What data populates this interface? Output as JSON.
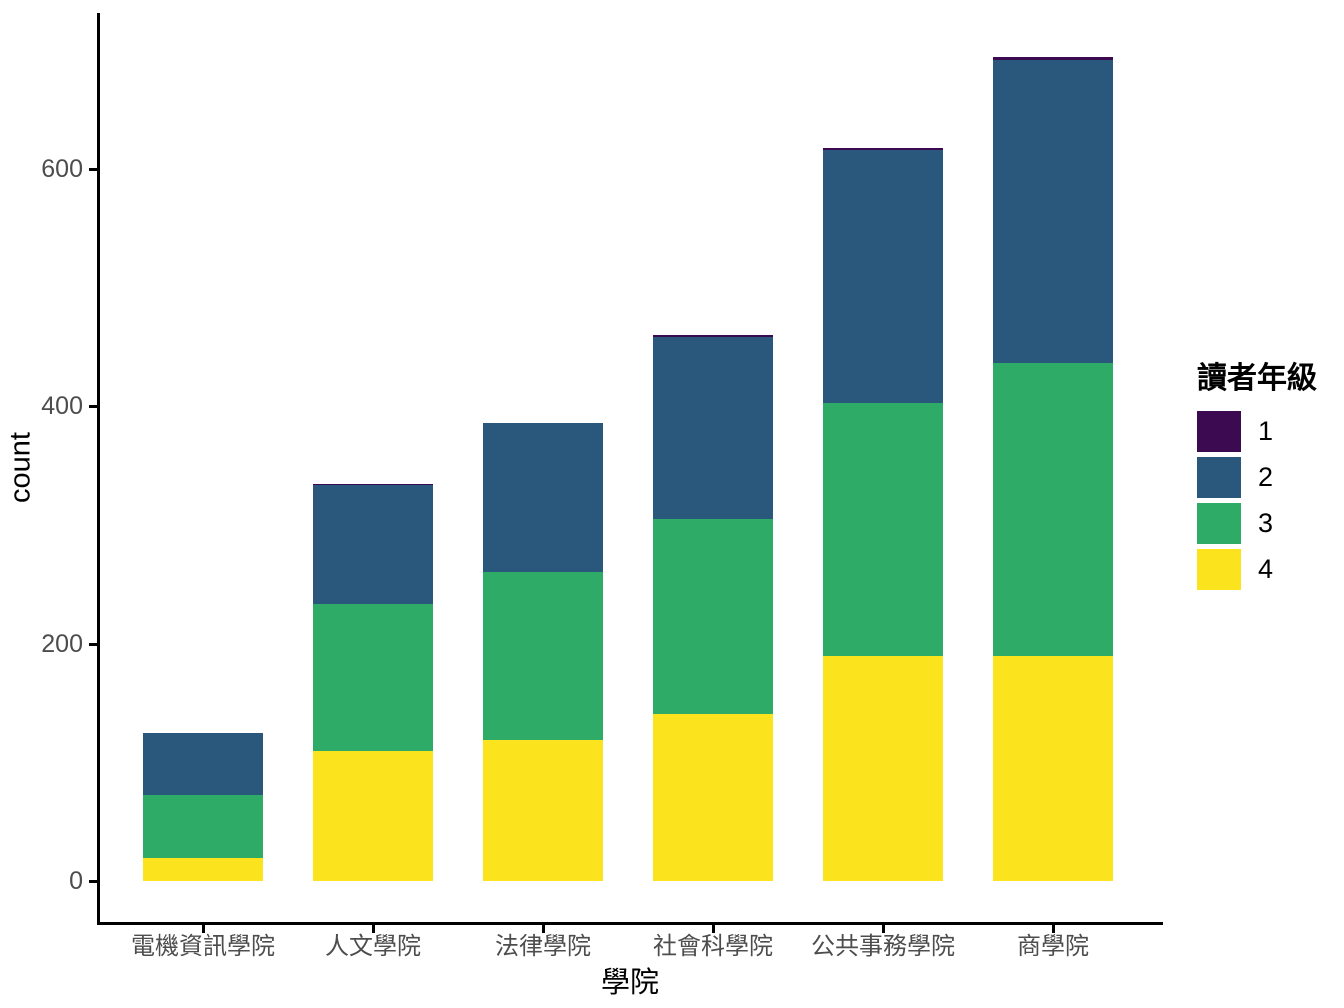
{
  "chart_data": {
    "type": "bar",
    "stacked": true,
    "title": "",
    "xlabel": "學院",
    "ylabel": "count",
    "categories": [
      "電機資訊學院",
      "人文學院",
      "法律學院",
      "社會科學院",
      "公共事務學院",
      "商學院"
    ],
    "series": [
      {
        "name": "1",
        "color": "#3B0A50",
        "values": [
          0,
          1,
          0,
          1,
          2,
          3
        ]
      },
      {
        "name": "2",
        "color": "#2A577C",
        "values": [
          52,
          100,
          125,
          154,
          213,
          255
        ]
      },
      {
        "name": "3",
        "color": "#2FAB68",
        "values": [
          53,
          124,
          142,
          164,
          213,
          247
        ]
      },
      {
        "name": "4",
        "color": "#FBE41E",
        "values": [
          20,
          110,
          119,
          141,
          190,
          190
        ]
      }
    ],
    "totals": [
      125,
      335,
      386,
      460,
      618,
      695
    ],
    "stack_order_bottom_to_top": [
      "4",
      "3",
      "2",
      "1"
    ],
    "y_ticks": [
      0,
      200,
      400,
      600
    ],
    "ylim": [
      0,
      730
    ],
    "grid": false,
    "legend_title": "讀者年級",
    "legend_position": "right",
    "axis_color": "#000000",
    "tick_label_color": "#4D4D4D",
    "background": "#FFFFFF"
  }
}
